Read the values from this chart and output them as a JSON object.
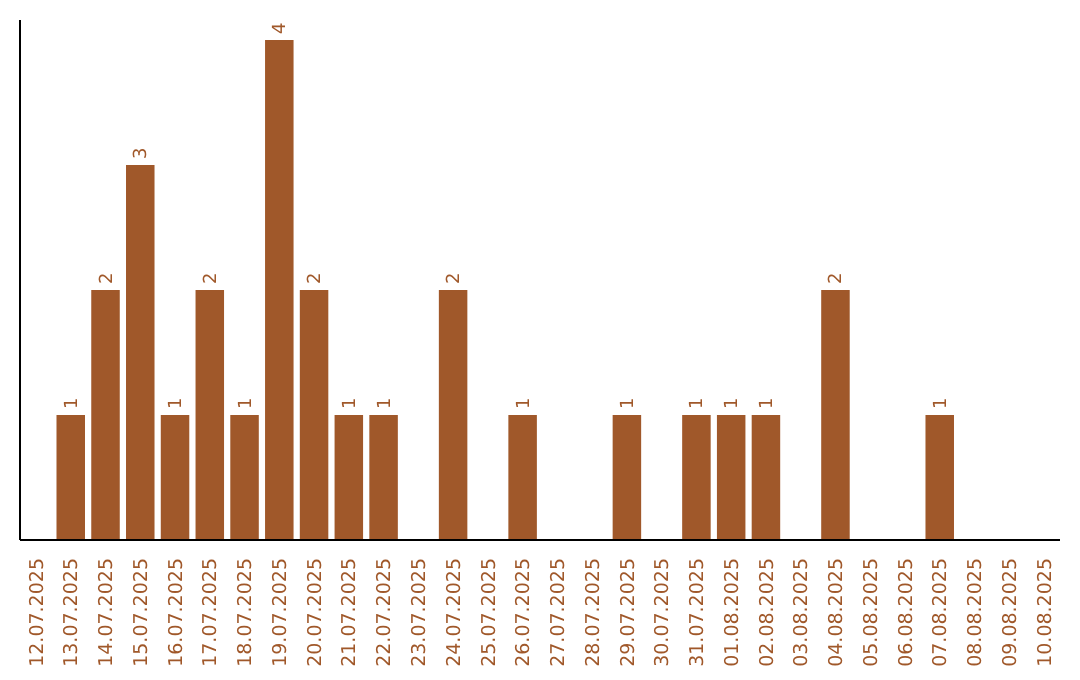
{
  "chart_data": {
    "type": "bar",
    "categories": [
      "12.07.2025",
      "13.07.2025",
      "14.07.2025",
      "15.07.2025",
      "16.07.2025",
      "17.07.2025",
      "18.07.2025",
      "19.07.2025",
      "20.07.2025",
      "21.07.2025",
      "22.07.2025",
      "23.07.2025",
      "24.07.2025",
      "25.07.2025",
      "26.07.2025",
      "27.07.2025",
      "28.07.2025",
      "29.07.2025",
      "30.07.2025",
      "31.07.2025",
      "01.08.2025",
      "02.08.2025",
      "03.08.2025",
      "04.08.2025",
      "05.08.2025",
      "06.08.2025",
      "07.08.2025",
      "08.08.2025",
      "09.08.2025",
      "10.08.2025"
    ],
    "values": [
      0,
      1,
      2,
      3,
      1,
      2,
      1,
      4,
      2,
      1,
      1,
      0,
      2,
      0,
      1,
      0,
      0,
      1,
      0,
      1,
      1,
      1,
      0,
      2,
      0,
      0,
      1,
      0,
      0,
      0
    ],
    "value_labels": [
      null,
      "1",
      "2",
      "3",
      "1",
      "2",
      "1",
      "4",
      "2",
      "1",
      "1",
      null,
      "2",
      null,
      "1",
      null,
      null,
      "1",
      null,
      "1",
      "1",
      "1",
      null,
      "2",
      null,
      null,
      "1",
      null,
      null,
      null
    ],
    "color": "#a0582a",
    "tick_labels": "x"
  }
}
